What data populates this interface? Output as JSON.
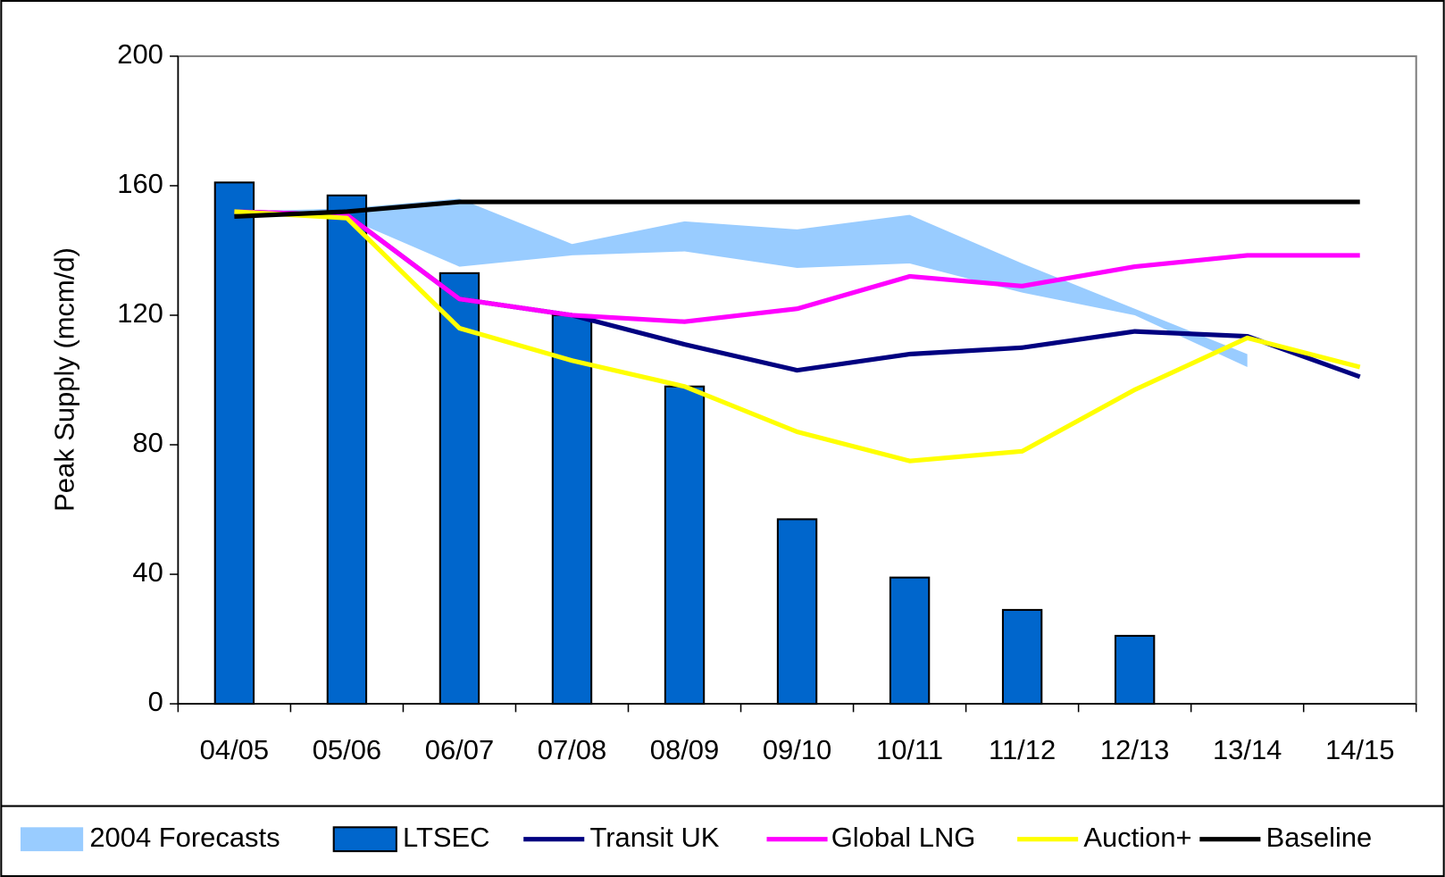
{
  "chart_data": {
    "type": "bar",
    "y_label": "Peak Supply (mcm/d)",
    "categories": [
      "04/05",
      "05/06",
      "06/07",
      "07/08",
      "08/09",
      "09/10",
      "10/11",
      "11/12",
      "12/13",
      "13/14",
      "14/15"
    ],
    "ylim": [
      0,
      200
    ],
    "yticks": [
      0,
      40,
      80,
      120,
      160,
      200
    ],
    "grid": false,
    "legend": "bottom",
    "series": [
      {
        "name": "2004 Forecasts",
        "type": "area",
        "color": "#99ccff",
        "low": [
          152,
          150,
          135,
          138.5,
          139.7,
          134.6,
          136,
          127,
          120,
          104,
          null
        ],
        "high": [
          152,
          153,
          156,
          142,
          149,
          146.5,
          151,
          136,
          122,
          108,
          null
        ]
      },
      {
        "name": "LTSEC",
        "type": "bar",
        "color": "#0066cc",
        "values": [
          161,
          157,
          133,
          120,
          98,
          57,
          39,
          29,
          21,
          null,
          null
        ]
      },
      {
        "name": "Transit UK",
        "type": "line",
        "color": "#000080",
        "values": [
          152,
          151,
          125,
          120,
          111,
          103,
          108,
          110,
          115,
          113.5,
          101
        ]
      },
      {
        "name": "Global LNG",
        "type": "line",
        "color": "#ff00ff",
        "values": [
          152,
          151,
          125,
          120,
          118,
          122,
          132,
          129,
          135,
          138.5,
          138.5
        ]
      },
      {
        "name": "Auction+",
        "type": "line",
        "color": "#ffff00",
        "values": [
          152,
          150,
          116,
          106,
          98,
          84,
          75,
          78,
          97,
          113,
          104
        ]
      },
      {
        "name": "Baseline",
        "type": "line",
        "color": "#000000",
        "values": [
          150.5,
          152,
          155,
          155,
          155,
          155,
          155,
          155,
          155,
          155,
          155
        ]
      }
    ]
  }
}
